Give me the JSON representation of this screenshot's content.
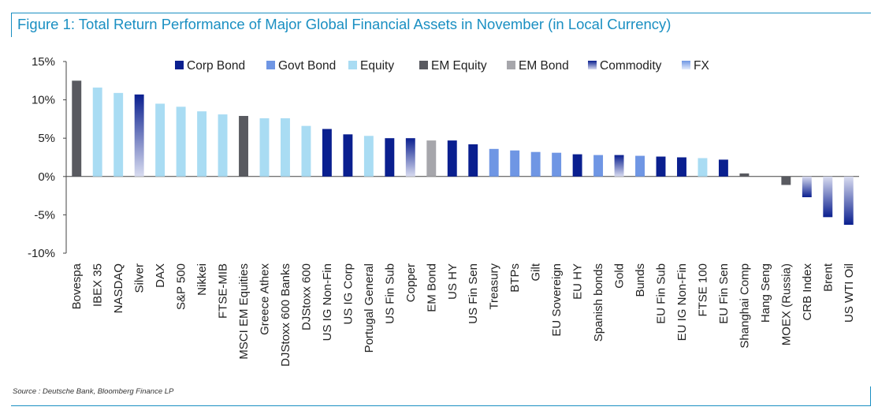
{
  "figure": {
    "title": "Figure 1: Total Return Performance of Major Global Financial Assets in November (in Local Currency)",
    "source": "Source : Deutsche Bank, Bloomberg Finance LP",
    "accent_color": "#1a8fc2"
  },
  "chart_data": {
    "type": "bar",
    "title": "Figure 1: Total Return Performance of Major Global Financial Assets in November (in Local Currency)",
    "xlabel": "",
    "ylabel": "",
    "ylim": [
      -10,
      15
    ],
    "yticks": [
      15,
      10,
      5,
      0,
      -5,
      -10
    ],
    "ytick_labels": [
      "15%",
      "10%",
      "5%",
      "0%",
      "-5%",
      "-10%"
    ],
    "grid": false,
    "legend_position": "top",
    "legend": [
      {
        "name": "Corp Bond",
        "color": "#0a1f8f",
        "style": "solid"
      },
      {
        "name": "Govt Bond",
        "color": "#6f96e4",
        "style": "solid"
      },
      {
        "name": "Equity",
        "color": "#a9dcf3",
        "style": "solid"
      },
      {
        "name": "EM Equity",
        "color": "#595a60",
        "style": "solid"
      },
      {
        "name": "EM Bond",
        "color": "#a6a6ab",
        "style": "solid"
      },
      {
        "name": "Commodity",
        "color": "#0a1f8f",
        "style": "gradient"
      },
      {
        "name": "FX",
        "color": "#6f96e4",
        "style": "gradient"
      }
    ],
    "categories": [
      "Bovespa",
      "IBEX 35",
      "NASDAQ",
      "Silver",
      "DAX",
      "S&P 500",
      "Nikkei",
      "FTSE-MIB",
      "MSCI EM Equities",
      "Greece Athex",
      "DJStoxx 600 Banks",
      "DJStoxx 600",
      "US IG Non-Fin",
      "US IG Corp",
      "Portugal General",
      "US Fin Sub",
      "Copper",
      "EM Bond",
      "US HY",
      "US Fin Sen",
      "Treasury",
      "BTPs",
      "Gilt",
      "EU Sovereign",
      "EU HY",
      "Spanish bonds",
      "Gold",
      "Bunds",
      "EU Fin Sub",
      "EU IG Non-Fin",
      "FTSE 100",
      "EU Fin Sen",
      "Shanghai Comp",
      "Hang Seng",
      "MOEX (Russia)",
      "CRB Index",
      "Brent",
      "US WTI Oil"
    ],
    "values": [
      12.5,
      11.6,
      10.9,
      10.7,
      9.5,
      9.1,
      8.5,
      8.1,
      7.9,
      7.6,
      7.6,
      6.6,
      6.2,
      5.5,
      5.3,
      5.0,
      5.0,
      4.7,
      4.7,
      4.2,
      3.6,
      3.4,
      3.2,
      3.1,
      2.9,
      2.8,
      2.8,
      2.7,
      2.6,
      2.5,
      2.4,
      2.2,
      0.4,
      0.0,
      -1.1,
      -2.7,
      -5.3,
      -6.3
    ],
    "asset_class": [
      "EM Equity",
      "Equity",
      "Equity",
      "Commodity",
      "Equity",
      "Equity",
      "Equity",
      "Equity",
      "EM Equity",
      "Equity",
      "Equity",
      "Equity",
      "Corp Bond",
      "Corp Bond",
      "Equity",
      "Corp Bond",
      "Commodity",
      "EM Bond",
      "Corp Bond",
      "Corp Bond",
      "Govt Bond",
      "Govt Bond",
      "Govt Bond",
      "Govt Bond",
      "Corp Bond",
      "Govt Bond",
      "Commodity",
      "Govt Bond",
      "Corp Bond",
      "Corp Bond",
      "Equity",
      "Corp Bond",
      "EM Equity",
      "EM Equity",
      "EM Equity",
      "Commodity",
      "Commodity",
      "Commodity"
    ]
  }
}
